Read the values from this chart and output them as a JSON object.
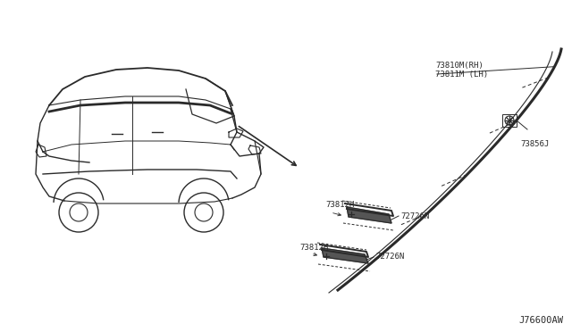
{
  "bg_color": "#ffffff",
  "diagram_id": "J76600AW",
  "labels": {
    "part1_line1": "73810M(RH)",
    "part1_line2": "73811M (LH)",
    "part2": "73856J",
    "part3a": "73812H",
    "part4a": "72726N",
    "part3b": "73812H",
    "part4b": "72726N"
  },
  "font_size": 6.5,
  "diagram_font_size": 7.5,
  "line_color": "#2a2a2a",
  "car_color": "#2a2a2a"
}
